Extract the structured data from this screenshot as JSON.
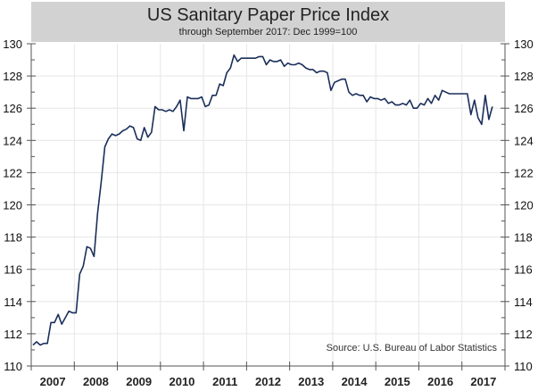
{
  "chart_data": {
    "type": "line",
    "title": "US Sanitary Paper Price Index",
    "subtitle": "through September 2017: Dec 1999=100",
    "xlabel": "",
    "ylabel": "",
    "source": "Source: U.S. Bureau of Labor Statistics",
    "ylim": [
      110,
      130
    ],
    "yticks": [
      110,
      112,
      114,
      116,
      118,
      120,
      122,
      124,
      126,
      128,
      130
    ],
    "ytick_labels": [
      "110",
      "112",
      "114",
      "116",
      "118",
      "120",
      "122",
      "124",
      "126",
      "128",
      "130"
    ],
    "xlim": [
      2007,
      2018
    ],
    "xtick_labels": [
      "2007",
      "2008",
      "2009",
      "2010",
      "2011",
      "2012",
      "2013",
      "2014",
      "2015",
      "2016",
      "2017"
    ],
    "grid": true,
    "line_color": "#1a2f5a",
    "frequency": "monthly",
    "start": "2007-01",
    "series": [
      {
        "name": "US Sanitary Paper Price Index",
        "values": [
          111.3,
          111.5,
          111.3,
          111.4,
          111.4,
          112.7,
          112.7,
          113.2,
          112.6,
          113.0,
          113.4,
          113.3,
          113.3,
          115.7,
          116.2,
          117.4,
          117.3,
          116.8,
          119.5,
          121.4,
          123.6,
          124.1,
          124.4,
          124.3,
          124.4,
          124.6,
          124.7,
          124.9,
          124.8,
          124.1,
          124.0,
          124.8,
          124.2,
          124.5,
          126.1,
          125.9,
          125.9,
          125.8,
          125.9,
          125.8,
          126.1,
          126.5,
          124.6,
          126.7,
          126.6,
          126.6,
          126.6,
          126.7,
          126.1,
          126.2,
          126.8,
          126.8,
          127.5,
          127.4,
          128.2,
          128.5,
          129.3,
          128.9,
          129.1,
          129.1,
          129.1,
          129.1,
          129.1,
          129.2,
          129.2,
          128.7,
          129.0,
          128.9,
          128.9,
          129.0,
          128.6,
          128.8,
          128.7,
          128.7,
          128.8,
          128.7,
          128.5,
          128.4,
          128.4,
          128.2,
          128.3,
          128.3,
          128.2,
          127.1,
          127.6,
          127.7,
          127.8,
          127.8,
          127.0,
          126.8,
          126.9,
          126.8,
          126.8,
          126.4,
          126.7,
          126.6,
          126.6,
          126.5,
          126.6,
          126.3,
          126.4,
          126.2,
          126.2,
          126.3,
          126.2,
          126.5,
          126.0,
          126.0,
          126.3,
          126.2,
          126.6,
          126.3,
          126.8,
          126.5,
          127.1,
          127.0,
          126.9,
          126.9,
          126.9,
          126.9,
          126.9,
          126.9,
          125.6,
          126.5,
          125.4,
          125.0,
          126.8,
          125.3,
          126.1
        ]
      }
    ]
  }
}
